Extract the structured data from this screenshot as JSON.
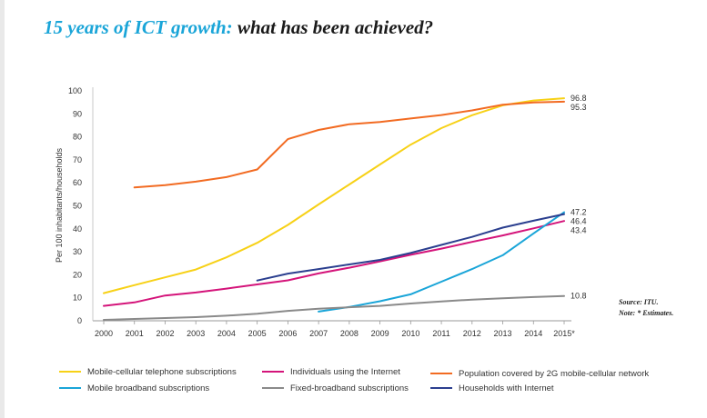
{
  "title": {
    "highlight": "15 years of ICT growth:",
    "rest": "what has been achieved?"
  },
  "notes": {
    "source": "Source: ITU.",
    "note": "Note: * Estimates."
  },
  "chart_data": {
    "type": "line",
    "ylabel": "Per 100 inhabitants/households",
    "y_ticks": [
      "0",
      "10",
      "20",
      "30",
      "40",
      "50",
      "60",
      "70",
      "80",
      "90",
      "100"
    ],
    "x": [
      "2000",
      "2001",
      "2002",
      "2003",
      "2004",
      "2005",
      "2006",
      "2007",
      "2008",
      "2009",
      "2010",
      "2011",
      "2012",
      "2013",
      "2014",
      "2015*"
    ],
    "ylim": [
      0,
      100
    ],
    "grid": false,
    "legend_position": "bottom",
    "series": [
      {
        "name": "Mobile-cellular telephone subscriptions",
        "color": "#f7d117",
        "values": [
          12,
          15.5,
          18.9,
          22.3,
          27.6,
          33.9,
          41.7,
          50.6,
          59.3,
          68.0,
          76.6,
          83.8,
          89.4,
          93.7,
          95.8,
          96.8
        ],
        "end_label": "96.8"
      },
      {
        "name": "Individuals using the Internet",
        "color": "#d4147a",
        "values": [
          6.5,
          8,
          11,
          12.3,
          14,
          15.8,
          17.6,
          20.6,
          23.1,
          25.8,
          28.7,
          31.4,
          34.3,
          37.1,
          40.2,
          43.4
        ],
        "end_label": "43.4"
      },
      {
        "name": "Population covered by 2G mobile-cellular network",
        "color": "#f26b22",
        "values": [
          null,
          58,
          59,
          60.5,
          62.5,
          65.8,
          79,
          83,
          85.5,
          86.5,
          88,
          89.5,
          91.5,
          94,
          95,
          95.3
        ],
        "end_label": "95.3"
      },
      {
        "name": "Mobile broadband subscriptions",
        "color": "#1aa5d8",
        "values": [
          null,
          null,
          null,
          null,
          null,
          null,
          null,
          4,
          6,
          8.5,
          11.5,
          17,
          22.5,
          28.5,
          38,
          47.2
        ],
        "end_label": "47.2"
      },
      {
        "name": "Fixed-broadband subscriptions",
        "color": "#8a8a8a",
        "values": [
          0.4,
          0.8,
          1.2,
          1.6,
          2.2,
          3.1,
          4.3,
          5.2,
          5.9,
          6.5,
          7.5,
          8.4,
          9.2,
          9.8,
          10.3,
          10.8
        ],
        "end_label": "10.8"
      },
      {
        "name": "Households with Internet",
        "color": "#2b3f8f",
        "values": [
          null,
          null,
          null,
          null,
          null,
          17.5,
          20.5,
          22.5,
          24.5,
          26.5,
          29.5,
          33,
          36.5,
          40.5,
          43.5,
          46.4
        ],
        "end_label": "46.4"
      }
    ],
    "legend_order": [
      0,
      1,
      2,
      3,
      4,
      5
    ]
  }
}
